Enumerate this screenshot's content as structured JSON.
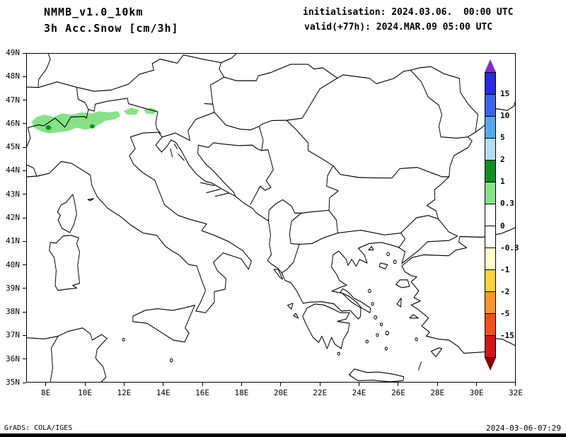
{
  "title": {
    "line1": "NMMB_v1.0_10km",
    "line2": "3h Acc.Snow [cm/3h]"
  },
  "run_info": {
    "line1": "initialisation: 2024.03.06.  00:00 UTC",
    "line2": "valid(+77h): 2024.MAR.09 05:00 UTC"
  },
  "axes": {
    "lat": [
      "49N",
      "48N",
      "47N",
      "46N",
      "45N",
      "44N",
      "43N",
      "42N",
      "41N",
      "40N",
      "39N",
      "38N",
      "37N",
      "36N",
      "35N"
    ],
    "lon": [
      "8E",
      "10E",
      "12E",
      "14E",
      "16E",
      "18E",
      "20E",
      "22E",
      "24E",
      "26E",
      "28E",
      "30E",
      "32E"
    ]
  },
  "colorbar": {
    "labels": [
      "15",
      "10",
      "5",
      "2",
      "1",
      "0.3",
      "0",
      "-0.3",
      "-1",
      "-2",
      "-5",
      "-15"
    ],
    "segments": [
      "#2a2ae0",
      "#3c64f0",
      "#58a8f0",
      "#b4dcf5",
      "#0f8f1f",
      "#86e286",
      "#ffffff",
      "#ffffff",
      "#ffffc8",
      "#ffd23c",
      "#ff962d",
      "#f4501e",
      "#d21414"
    ],
    "arrow_top": "#8428d7",
    "arrow_bottom": "#8c0000"
  },
  "map": {
    "snow_light": "#86e286",
    "snow_dark": "#0f8f1f",
    "coast_color": "#000000"
  },
  "footer": {
    "left": "GrADS: COLA/IGES",
    "right": "2024-03-06-07:29"
  }
}
